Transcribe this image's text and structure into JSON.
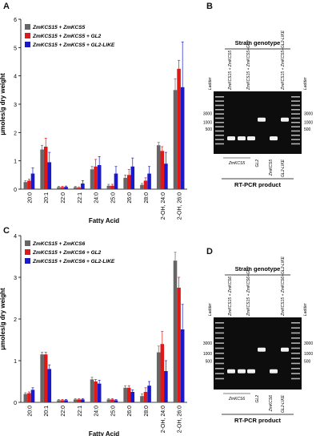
{
  "panels": {
    "a": "A",
    "b": "B",
    "c": "C",
    "d": "D"
  },
  "colors": {
    "series1": "#666666",
    "series2": "#e01818",
    "series3": "#1a1acc",
    "gel_bg": "#0d0d0d"
  },
  "chart_data": [
    {
      "type": "bar",
      "panel": "A",
      "ylabel": "μmoles/g dry weight",
      "xlabel": "Fatty Acid",
      "ylim": [
        0,
        6
      ],
      "yticks": [
        "0",
        "1",
        "2",
        "3",
        "4",
        "5",
        "6"
      ],
      "legend_position": "top-left",
      "categories": [
        "20:0",
        "20:1",
        "22:0",
        "22:1",
        "24:0",
        "25:0",
        "26:0",
        "28:0",
        "2-OH, 24:0",
        "2-OH, 26:0"
      ],
      "series": [
        {
          "name": "ZmKCS15 + ZmKCS5",
          "values": [
            0.25,
            1.4,
            0.07,
            0.07,
            0.7,
            0.12,
            0.4,
            0.15,
            1.55,
            3.5
          ],
          "errors": [
            0.05,
            0.15,
            0.03,
            0.03,
            0.1,
            0.05,
            0.1,
            0.05,
            0.1,
            0.4
          ]
        },
        {
          "name": "ZmKCS15 + ZmKCS5 + GL2",
          "values": [
            0.3,
            1.5,
            0.07,
            0.05,
            0.8,
            0.12,
            0.5,
            0.3,
            1.35,
            4.25
          ],
          "errors": [
            0.05,
            0.3,
            0.03,
            0.03,
            0.25,
            0.05,
            0.2,
            0.1,
            0.15,
            0.3
          ]
        },
        {
          "name": "ZmKCS15 + ZmKCS5 + GL2-LIKE",
          "values": [
            0.55,
            0.95,
            0.08,
            0.2,
            0.85,
            0.55,
            0.8,
            0.55,
            0.9,
            3.6
          ],
          "errors": [
            0.2,
            0.35,
            0.03,
            0.1,
            0.3,
            0.25,
            0.3,
            0.25,
            0.4,
            1.6
          ]
        }
      ]
    },
    {
      "type": "bar",
      "panel": "C",
      "ylabel": "μmoles/g dry weight",
      "xlabel": "Fatty Acid",
      "ylim": [
        0,
        4
      ],
      "yticks": [
        "0",
        "1",
        "2",
        "3",
        "4"
      ],
      "legend_position": "top-left",
      "categories": [
        "20:0",
        "20:1",
        "22:0",
        "22:1",
        "24:0",
        "25:0",
        "26:0",
        "28:0",
        "2-OH, 24:0",
        "2-OH, 26:0"
      ],
      "series": [
        {
          "name": "ZmKCS15 + ZmKCS6",
          "values": [
            0.2,
            1.15,
            0.05,
            0.07,
            0.55,
            0.07,
            0.35,
            0.15,
            1.2,
            3.4
          ],
          "errors": [
            0.03,
            0.05,
            0.02,
            0.02,
            0.05,
            0.02,
            0.05,
            0.05,
            0.15,
            0.2
          ]
        },
        {
          "name": "ZmKCS15 + ZmKCS6 + GL2",
          "values": [
            0.22,
            1.15,
            0.05,
            0.07,
            0.5,
            0.07,
            0.35,
            0.25,
            1.4,
            2.75
          ],
          "errors": [
            0.03,
            0.05,
            0.02,
            0.02,
            0.05,
            0.02,
            0.05,
            0.1,
            0.3,
            0.25
          ]
        },
        {
          "name": "ZmKCS15 + ZmKCS6 + GL2-LIKE",
          "values": [
            0.3,
            0.8,
            0.05,
            0.07,
            0.45,
            0.05,
            0.25,
            0.4,
            0.75,
            1.75
          ],
          "errors": [
            0.05,
            0.1,
            0.02,
            0.02,
            0.08,
            0.02,
            0.05,
            0.1,
            0.25,
            0.6
          ]
        }
      ]
    }
  ],
  "gels": {
    "b": {
      "header": "Strain genotype",
      "ladder": "Ladder",
      "strains": [
        "ZmKCS15 + ZmKCS5",
        "ZmKCS15 + ZmKCS5+GL2",
        "ZmKCS15 + ZmKCS5+GL2-LIKE"
      ],
      "markers_left": [
        "3000",
        "1000",
        "500"
      ],
      "markers_right": [
        "3000",
        "1000",
        "500"
      ],
      "products": [
        "ZmKCS5",
        "GL2",
        "ZmKCS5",
        "GL2-LIKE"
      ],
      "footer": "RT-PCR product"
    },
    "d": {
      "header": "Strain genotype",
      "ladder": "Ladder",
      "strains": [
        "ZmKCS15 + ZmKCS6",
        "ZmKCS15 + ZmKCS6+GL2",
        "ZmKCS15 + ZmKCS6+GL2-LIKE"
      ],
      "markers_left": [
        "3000",
        "1000",
        "500"
      ],
      "markers_right": [
        "3000",
        "1000",
        "500"
      ],
      "products": [
        "ZmKCS6",
        "GL2",
        "ZmKCS6",
        "GL2-LIKE"
      ],
      "footer": "RT-PCR product"
    }
  }
}
